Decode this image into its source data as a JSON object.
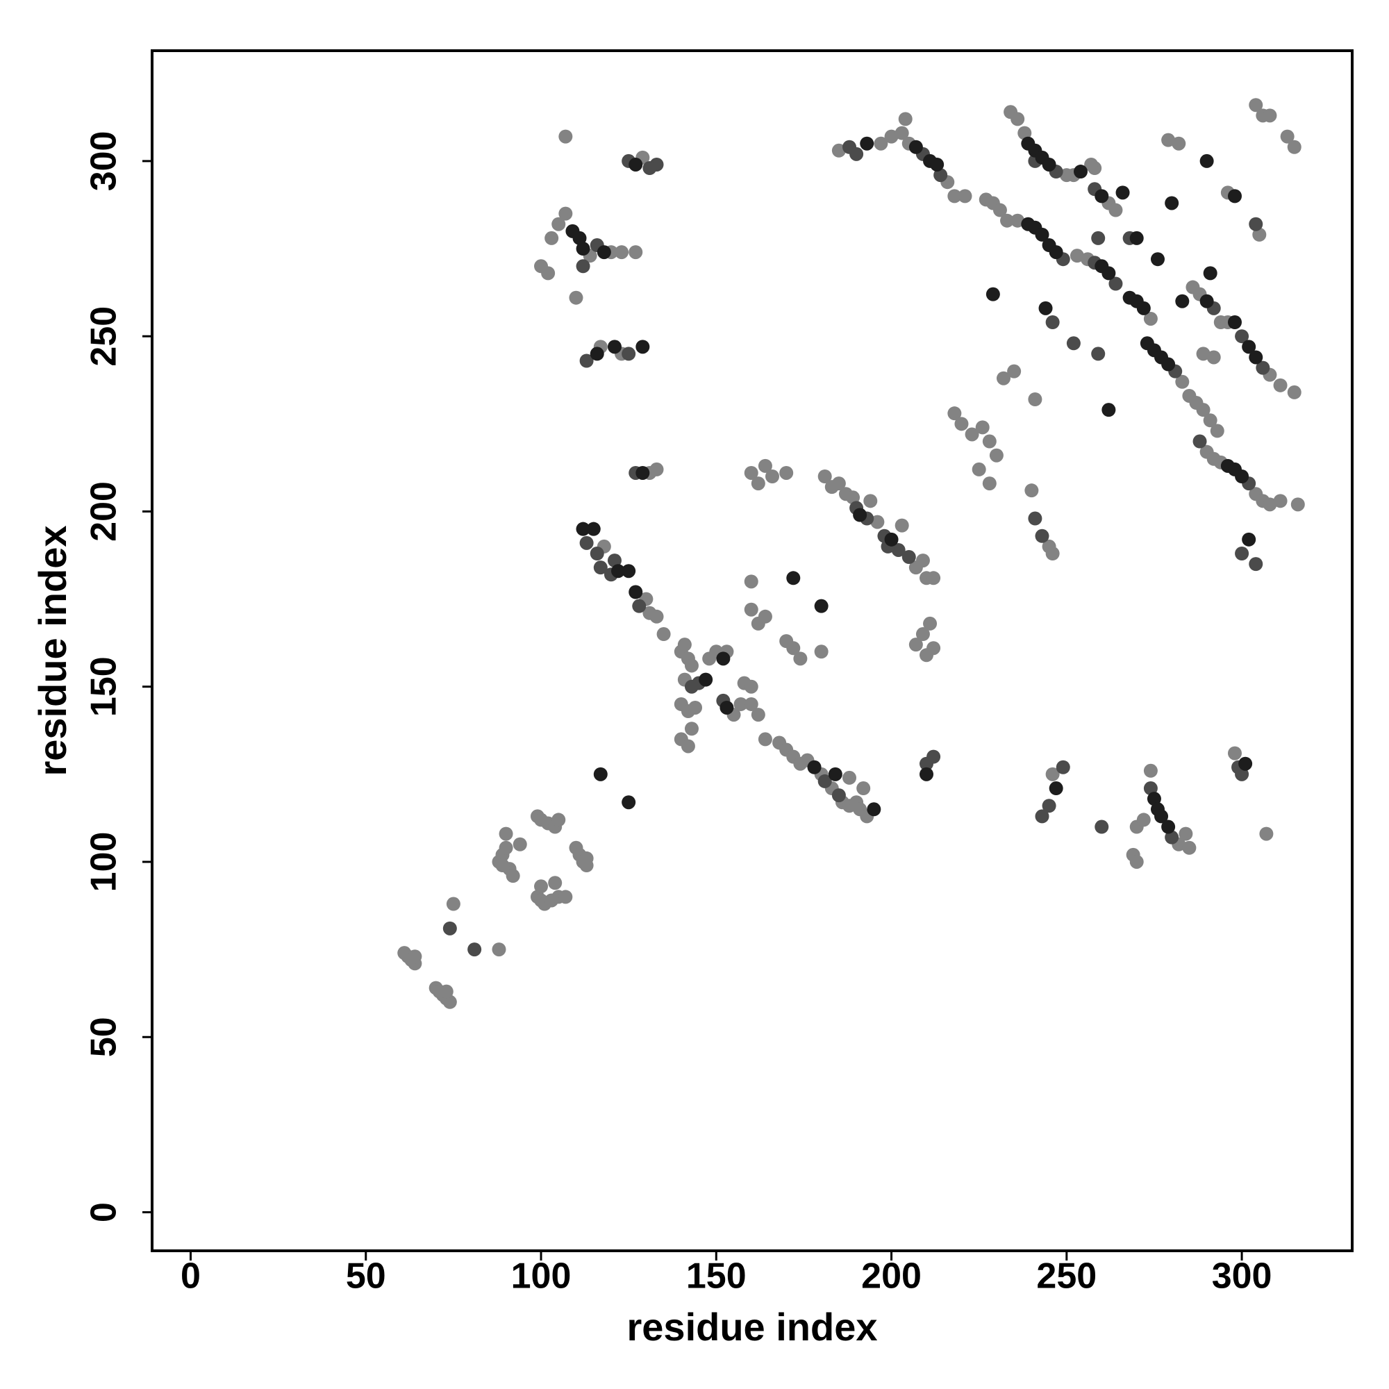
{
  "chart_data": {
    "type": "scatter",
    "xlabel": "residue index",
    "ylabel": "residue index",
    "xlim": [
      -11,
      331.5
    ],
    "ylim": [
      -11,
      331.5
    ],
    "xticks": [
      0,
      50,
      100,
      150,
      200,
      250,
      300
    ],
    "yticks": [
      0,
      50,
      100,
      150,
      200,
      250,
      300
    ],
    "series": [
      {
        "color": "#838383",
        "x": [
          61,
          62,
          63,
          64,
          64,
          70,
          71,
          72,
          73,
          74,
          73,
          75,
          88,
          88,
          89,
          90,
          90,
          91,
          92,
          94,
          89,
          99,
          100,
          101,
          103,
          105,
          107,
          104,
          100,
          99,
          100,
          102,
          104,
          105,
          110,
          111,
          112,
          113,
          113,
          112,
          115,
          118,
          130,
          131,
          133,
          135,
          140,
          141,
          142,
          143,
          141,
          148,
          150,
          153,
          140,
          142,
          144,
          140,
          142,
          143,
          155,
          157,
          158,
          160,
          160,
          162,
          164,
          168,
          170,
          172,
          174,
          176,
          180,
          183,
          186,
          188,
          190,
          191,
          193,
          192,
          188,
          181,
          183,
          185,
          187,
          189,
          194,
          196,
          203,
          207,
          209,
          210,
          212,
          160,
          162,
          164,
          166,
          170,
          160,
          160,
          162,
          164,
          170,
          172,
          174,
          180,
          207,
          209,
          211,
          212,
          210,
          100,
          102,
          103,
          105,
          107,
          114,
          120,
          123,
          127,
          110,
          107,
          129,
          117,
          123,
          131,
          133,
          185,
          197,
          200,
          203,
          204,
          205,
          216,
          218,
          221,
          227,
          229,
          231,
          233,
          236,
          234,
          236,
          238,
          250,
          252,
          258,
          262,
          264,
          256,
          274,
          283,
          285,
          287,
          289,
          291,
          293,
          290,
          292,
          294,
          304,
          306,
          308,
          311,
          316,
          286,
          288,
          294,
          296,
          308,
          311,
          315,
          232,
          235,
          241,
          240,
          245,
          246,
          226,
          228,
          230,
          218,
          220,
          223,
          225,
          228,
          253,
          257,
          292,
          289,
          296,
          305,
          304,
          306,
          308,
          313,
          315,
          279,
          282,
          246,
          269,
          270,
          270,
          272,
          274,
          282,
          284,
          285,
          298,
          307
        ],
        "values": [
          74,
          73,
          72,
          71,
          73,
          64,
          63,
          62,
          61,
          60,
          63,
          88,
          75,
          100,
          102,
          104,
          108,
          98,
          96,
          105,
          99,
          90,
          89,
          88,
          89,
          90,
          90,
          94,
          93,
          113,
          112,
          111,
          110,
          112,
          104,
          102,
          100,
          99,
          101,
          195,
          195,
          190,
          175,
          171,
          170,
          165,
          160,
          162,
          158,
          156,
          152,
          158,
          160,
          160,
          145,
          143,
          144,
          135,
          133,
          138,
          142,
          145,
          151,
          150,
          145,
          142,
          135,
          134,
          132,
          130,
          128,
          129,
          125,
          121,
          117,
          116,
          117,
          115,
          113,
          121,
          124,
          210,
          207,
          208,
          205,
          204,
          203,
          197,
          196,
          184,
          186,
          181,
          181,
          211,
          208,
          213,
          210,
          211,
          180,
          172,
          168,
          170,
          163,
          161,
          158,
          160,
          162,
          165,
          168,
          161,
          159,
          270,
          268,
          278,
          282,
          285,
          273,
          274,
          274,
          274,
          261,
          307,
          301,
          247,
          245,
          211,
          212,
          303,
          305,
          307,
          308,
          312,
          305,
          294,
          290,
          290,
          289,
          288,
          286,
          283,
          283,
          314,
          312,
          308,
          296,
          296,
          298,
          288,
          286,
          272,
          255,
          237,
          233,
          231,
          229,
          226,
          223,
          217,
          215,
          214,
          205,
          203,
          202,
          203,
          202,
          264,
          262,
          254,
          254,
          239,
          236,
          234,
          238,
          240,
          232,
          206,
          190,
          188,
          224,
          220,
          216,
          228,
          225,
          222,
          212,
          208,
          273,
          299,
          244,
          245,
          291,
          279,
          316,
          313,
          313,
          307,
          304,
          306,
          305,
          125,
          102,
          100,
          110,
          112,
          126,
          105,
          108,
          104,
          131,
          108
        ]
      },
      {
        "color": "#4b4b4b",
        "x": [
          113,
          116,
          120,
          117,
          121,
          128,
          143,
          145,
          152,
          181,
          185,
          190,
          193,
          198,
          202,
          205,
          112,
          116,
          125,
          133,
          131,
          113,
          125,
          127,
          188,
          190,
          209,
          214,
          249,
          241,
          247,
          258,
          258,
          264,
          281,
          288,
          302,
          292,
          300,
          306,
          241,
          243,
          246,
          252,
          259,
          259,
          268,
          304,
          300,
          304,
          243,
          245,
          249,
          260,
          274,
          280,
          299,
          300,
          74,
          81,
          199,
          212,
          210
        ],
        "values": [
          191,
          188,
          182,
          184,
          186,
          173,
          150,
          151,
          146,
          123,
          119,
          201,
          198,
          193,
          189,
          187,
          270,
          276,
          300,
          299,
          298,
          243,
          245,
          211,
          304,
          302,
          302,
          296,
          272,
          300,
          297,
          292,
          271,
          265,
          240,
          220,
          208,
          258,
          250,
          241,
          198,
          193,
          254,
          248,
          278,
          245,
          278,
          282,
          188,
          185,
          113,
          116,
          127,
          110,
          121,
          107,
          127,
          125,
          81,
          75,
          190,
          130,
          128
        ]
      },
      {
        "color": "#1d1d1d",
        "x": [
          115,
          112,
          122,
          125,
          127,
          147,
          152,
          153,
          178,
          184,
          195,
          191,
          200,
          109,
          111,
          112,
          118,
          127,
          116,
          121,
          129,
          129,
          193,
          207,
          211,
          213,
          239,
          241,
          243,
          245,
          247,
          239,
          241,
          243,
          245,
          254,
          260,
          260,
          262,
          268,
          270,
          272,
          273,
          275,
          277,
          279,
          296,
          298,
          300,
          290,
          298,
          302,
          304,
          229,
          244,
          262,
          266,
          270,
          276,
          280,
          283,
          290,
          298,
          291,
          302,
          247,
          275,
          276,
          277,
          279,
          301,
          172,
          180,
          117,
          125,
          210
        ],
        "values": [
          195,
          195,
          183,
          183,
          177,
          152,
          158,
          144,
          127,
          125,
          115,
          199,
          192,
          280,
          278,
          275,
          274,
          299,
          245,
          247,
          247,
          211,
          305,
          304,
          300,
          299,
          282,
          281,
          279,
          276,
          274,
          305,
          303,
          301,
          299,
          297,
          290,
          270,
          268,
          261,
          260,
          258,
          248,
          246,
          244,
          242,
          213,
          212,
          210,
          260,
          254,
          247,
          244,
          262,
          258,
          229,
          291,
          278,
          272,
          288,
          260,
          300,
          290,
          268,
          192,
          121,
          118,
          115,
          113,
          110,
          128,
          181,
          173,
          125,
          117,
          125
        ]
      }
    ]
  }
}
